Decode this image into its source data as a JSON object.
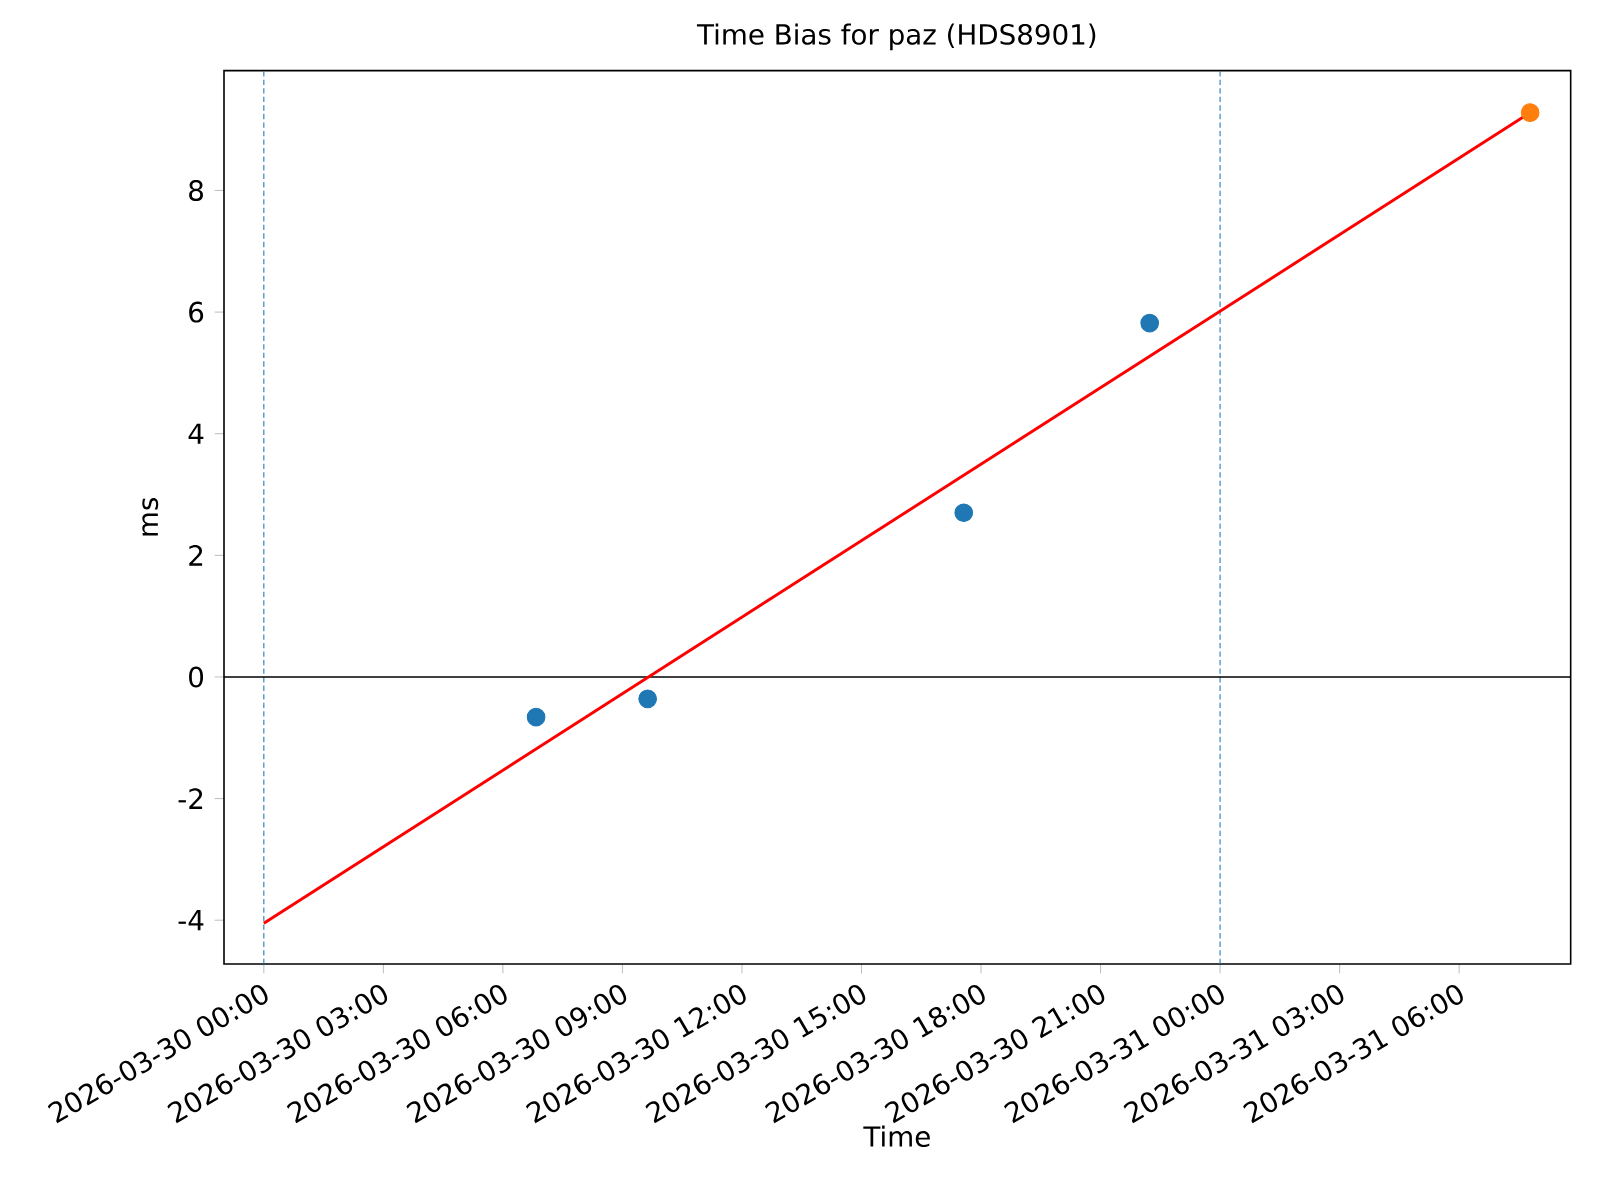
{
  "chart_data": {
    "type": "scatter",
    "title": "Time Bias for paz (HDS8901)",
    "xlabel": "Time",
    "ylabel": "ms",
    "xlim": [
      "2026-03-29T23:00",
      "2026-03-31T08:48"
    ],
    "ylim": [
      -4.72,
      9.97
    ],
    "xticks": [
      {
        "value": "2026-03-30T00:00",
        "label": "2026-03-30 00:00"
      },
      {
        "value": "2026-03-30T03:00",
        "label": "2026-03-30 03:00"
      },
      {
        "value": "2026-03-30T06:00",
        "label": "2026-03-30 06:00"
      },
      {
        "value": "2026-03-30T09:00",
        "label": "2026-03-30 09:00"
      },
      {
        "value": "2026-03-30T12:00",
        "label": "2026-03-30 12:00"
      },
      {
        "value": "2026-03-30T15:00",
        "label": "2026-03-30 15:00"
      },
      {
        "value": "2026-03-30T18:00",
        "label": "2026-03-30 18:00"
      },
      {
        "value": "2026-03-30T21:00",
        "label": "2026-03-30 21:00"
      },
      {
        "value": "2026-03-31T00:00",
        "label": "2026-03-31 00:00"
      },
      {
        "value": "2026-03-31T03:00",
        "label": "2026-03-31 03:00"
      },
      {
        "value": "2026-03-31T06:00",
        "label": "2026-03-31 06:00"
      }
    ],
    "yticks": [
      -4,
      -2,
      0,
      2,
      4,
      6,
      8
    ],
    "grid": false,
    "series": [
      {
        "color": "#1f77b4",
        "x": [
          "2026-03-30T06:50",
          "2026-03-30T09:38",
          "2026-03-30T17:34",
          "2026-03-30T22:14"
        ],
        "values": [
          -0.66,
          -0.36,
          2.7,
          5.82
        ]
      },
      {
        "color": "#ff7f0e",
        "x": [
          "2026-03-31T07:47"
        ],
        "values": [
          9.28
        ]
      },
      {
        "type": "line",
        "color": "#ff0000",
        "line_style": "solid",
        "x": [
          "2026-03-30T00:00",
          "2026-03-31T07:47"
        ],
        "values": [
          -4.05,
          9.28
        ]
      }
    ],
    "ref_lines": [
      {
        "axis": "x",
        "value": "2026-03-30T00:00",
        "color": "#1f77b4",
        "line_style": "dashed"
      },
      {
        "axis": "x",
        "value": "2026-03-31T00:00",
        "color": "#1f77b4",
        "line_style": "dashed"
      },
      {
        "axis": "y",
        "value": 0,
        "color": "#000000",
        "line_style": "solid"
      }
    ]
  }
}
